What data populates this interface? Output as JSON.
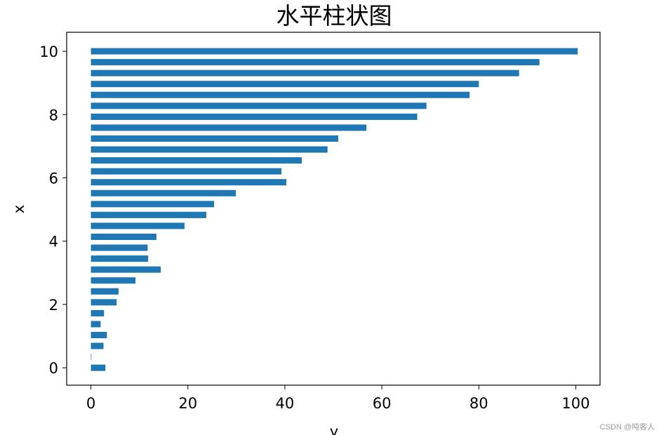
{
  "chart_data": {
    "type": "bar",
    "orientation": "horizontal",
    "title": "水平柱状图",
    "xlabel": "y",
    "ylabel": "x",
    "bar_color": "#1f77b4",
    "xlim": [
      -5,
      105
    ],
    "ylim": [
      -0.55,
      10.6
    ],
    "x_ticks": [
      0,
      20,
      40,
      60,
      80,
      100
    ],
    "y_ticks": [
      0,
      2,
      4,
      6,
      8,
      10
    ],
    "categories": [
      0.0,
      0.345,
      0.69,
      1.034,
      1.379,
      1.724,
      2.069,
      2.414,
      2.759,
      3.103,
      3.448,
      3.793,
      4.138,
      4.483,
      4.828,
      5.172,
      5.517,
      5.862,
      6.207,
      6.552,
      6.897,
      7.241,
      7.586,
      7.931,
      8.276,
      8.621,
      8.966,
      9.31,
      9.655,
      10.0
    ],
    "values": [
      3.0,
      0.1,
      2.6,
      3.3,
      2.0,
      2.7,
      5.3,
      5.7,
      9.2,
      14.4,
      11.8,
      11.7,
      13.5,
      19.3,
      23.8,
      25.4,
      29.9,
      40.3,
      39.3,
      43.5,
      48.8,
      51.0,
      56.8,
      67.3,
      69.2,
      78.1,
      80.0,
      88.3,
      92.5,
      100.4
    ]
  },
  "watermark": "CSDN @吨客人"
}
